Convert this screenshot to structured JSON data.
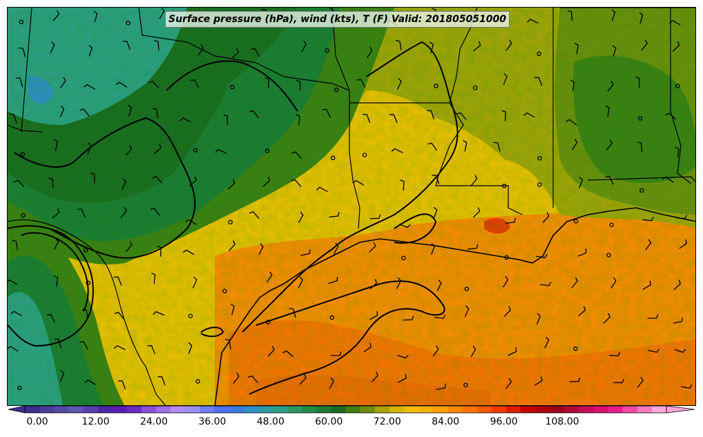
{
  "title": "Surface pressure (hPa), wind (kts), T (F) Valid: 201805051000",
  "colorbar": {
    "labels": [
      "0.00",
      "12.00",
      "24.00",
      "36.00",
      "48.00",
      "60.00",
      "72.00",
      "84.00",
      "96.00",
      "108.00"
    ],
    "colors": [
      "#3d2d8c",
      "#4a3c9a",
      "#534aa6",
      "#5e58b2",
      "#5a3fb0",
      "#4d26a8",
      "#5a1fb6",
      "#6a2bc4",
      "#8a4fd8",
      "#a070e6",
      "#b58cf0",
      "#9a90f4",
      "#6f7ef4",
      "#4f70f0",
      "#3c78e0",
      "#2f8ec9",
      "#2e9aa6",
      "#2e9e86",
      "#2a9a62",
      "#1f8c4a",
      "#1e7a36",
      "#1c6a22",
      "#3f7f14",
      "#6f8e0e",
      "#a7a408",
      "#d6b406",
      "#f0c000",
      "#f8b000",
      "#ffa200",
      "#ff8c00",
      "#ff7400",
      "#f85a00",
      "#ee3a00",
      "#dc1c00",
      "#c40600",
      "#ac000c",
      "#a2001e",
      "#ae0a3a",
      "#c40c56",
      "#d81070",
      "#e81a8a",
      "#f04aa6",
      "#f878c0",
      "#ffa8da"
    ]
  },
  "legend_min": 0,
  "legend_step": 12
}
